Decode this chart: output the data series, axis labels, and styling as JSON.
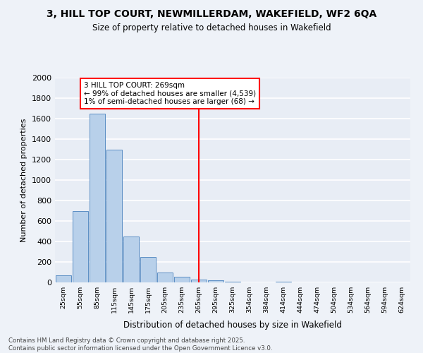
{
  "title1": "3, HILL TOP COURT, NEWMILLERDAM, WAKEFIELD, WF2 6QA",
  "title2": "Size of property relative to detached houses in Wakefield",
  "xlabel": "Distribution of detached houses by size in Wakefield",
  "ylabel": "Number of detached properties",
  "categories": [
    "25sqm",
    "55sqm",
    "85sqm",
    "115sqm",
    "145sqm",
    "175sqm",
    "205sqm",
    "235sqm",
    "265sqm",
    "295sqm",
    "325sqm",
    "354sqm",
    "384sqm",
    "414sqm",
    "444sqm",
    "474sqm",
    "504sqm",
    "534sqm",
    "564sqm",
    "594sqm",
    "624sqm"
  ],
  "values": [
    70,
    700,
    1650,
    1300,
    450,
    250,
    100,
    55,
    30,
    20,
    10,
    0,
    0,
    10,
    0,
    0,
    0,
    0,
    0,
    0,
    0
  ],
  "bar_color": "#b8d0ea",
  "bar_edge_color": "#5b8ec4",
  "background_color": "#e8edf5",
  "grid_color": "#ffffff",
  "red_line_index": 8,
  "annotation_title": "3 HILL TOP COURT: 269sqm",
  "annotation_line1": "← 99% of detached houses are smaller (4,539)",
  "annotation_line2": "1% of semi-detached houses are larger (68) →",
  "ylim": [
    0,
    2000
  ],
  "yticks": [
    0,
    200,
    400,
    600,
    800,
    1000,
    1200,
    1400,
    1600,
    1800,
    2000
  ],
  "footer1": "Contains HM Land Registry data © Crown copyright and database right 2025.",
  "footer2": "Contains public sector information licensed under the Open Government Licence v3.0."
}
